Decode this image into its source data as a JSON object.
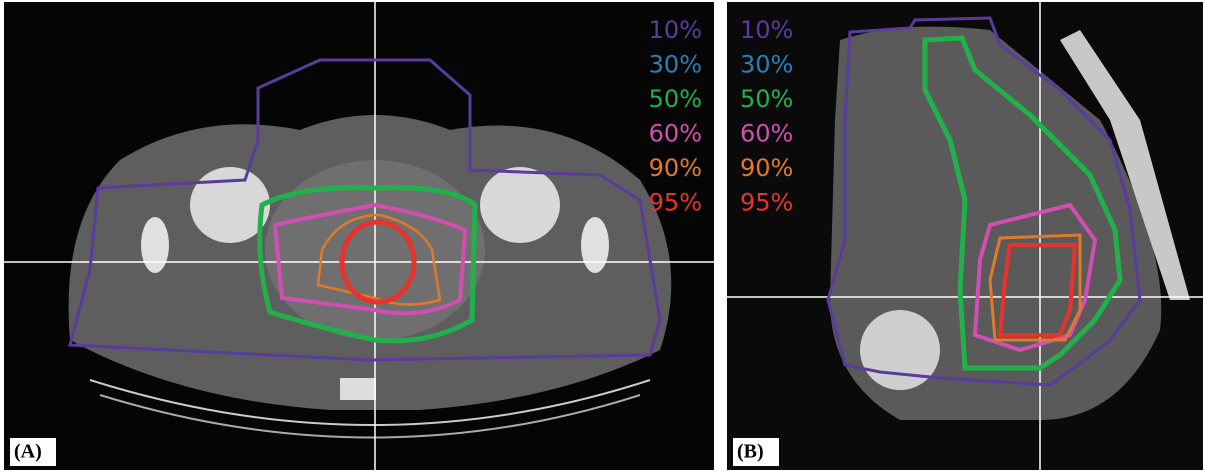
{
  "panels": [
    {
      "label": "(A)",
      "legend": [
        {
          "text": "10%",
          "color": "#5a3b9e"
        },
        {
          "text": "30%",
          "color": "#2a7fb8"
        },
        {
          "text": "50%",
          "color": "#22b04b"
        },
        {
          "text": "60%",
          "color": "#d04fb0"
        },
        {
          "text": "90%",
          "color": "#e07a2a"
        },
        {
          "text": "95%",
          "color": "#e8322c"
        }
      ]
    },
    {
      "label": "(B)",
      "legend": [
        {
          "text": "10%",
          "color": "#5a3b9e"
        },
        {
          "text": "30%",
          "color": "#2a7fb8"
        },
        {
          "text": "50%",
          "color": "#22b04b"
        },
        {
          "text": "60%",
          "color": "#d04fb0"
        },
        {
          "text": "90%",
          "color": "#e07a2a"
        },
        {
          "text": "95%",
          "color": "#e8322c"
        }
      ]
    }
  ]
}
